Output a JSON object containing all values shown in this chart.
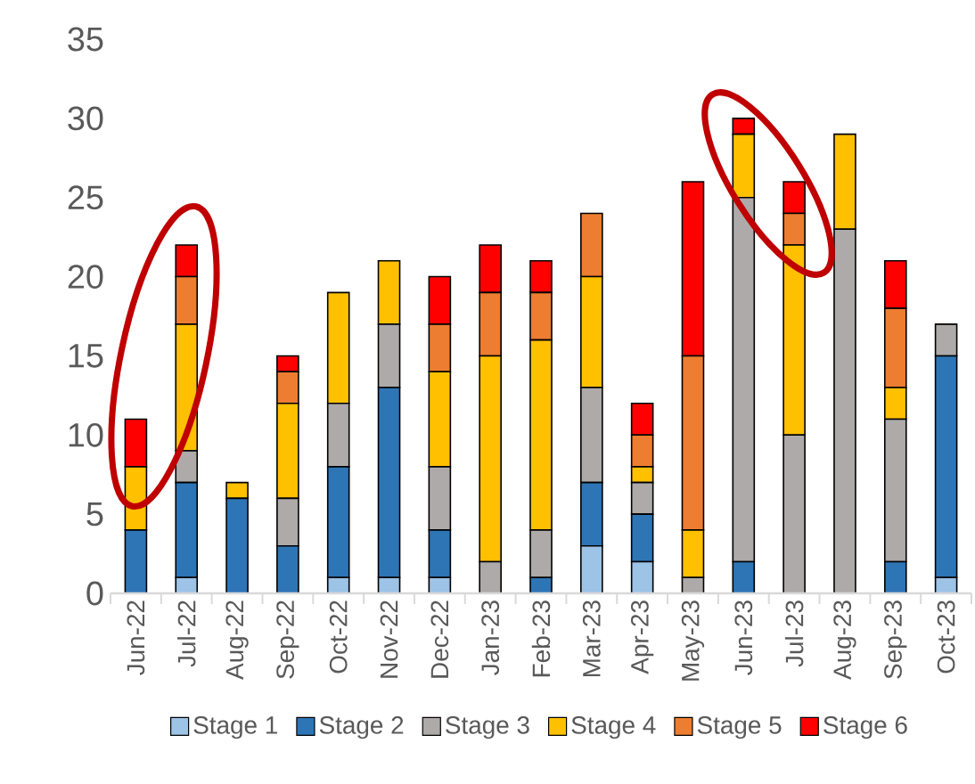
{
  "chart_data": {
    "type": "bar",
    "stacked": true,
    "categories": [
      "Jun-22",
      "Jul-22",
      "Aug-22",
      "Sep-22",
      "Oct-22",
      "Nov-22",
      "Dec-22",
      "Jan-23",
      "Feb-23",
      "Mar-23",
      "Apr-23",
      "May-23",
      "Jun-23",
      "Jul-23",
      "Aug-23",
      "Sep-23",
      "Oct-23"
    ],
    "series": [
      {
        "name": "Stage 1",
        "color": "#9dc3e6",
        "values": [
          0,
          1,
          0,
          0,
          1,
          1,
          1,
          0,
          0,
          3,
          2,
          0,
          0,
          0,
          0,
          0,
          1
        ]
      },
      {
        "name": "Stage 2",
        "color": "#2e75b6",
        "values": [
          4,
          6,
          6,
          3,
          7,
          12,
          3,
          0,
          1,
          4,
          3,
          0,
          2,
          0,
          0,
          2,
          14
        ]
      },
      {
        "name": "Stage 3",
        "color": "#aeaaaa",
        "values": [
          0,
          2,
          0,
          3,
          4,
          4,
          4,
          2,
          3,
          6,
          2,
          1,
          23,
          10,
          23,
          9,
          2
        ]
      },
      {
        "name": "Stage 4",
        "color": "#ffc000",
        "values": [
          4,
          8,
          1,
          6,
          7,
          4,
          6,
          13,
          12,
          7,
          1,
          3,
          4,
          12,
          6,
          2,
          0
        ]
      },
      {
        "name": "Stage 5",
        "color": "#ed7d31",
        "values": [
          0,
          3,
          0,
          2,
          0,
          0,
          3,
          4,
          3,
          4,
          2,
          11,
          0,
          2,
          0,
          5,
          0
        ]
      },
      {
        "name": "Stage 6",
        "color": "#ff0000",
        "values": [
          3,
          2,
          0,
          1,
          0,
          0,
          3,
          3,
          2,
          0,
          2,
          11,
          1,
          2,
          0,
          3,
          0
        ]
      }
    ],
    "ylim": [
      0,
      35
    ],
    "yticks": [
      0,
      5,
      10,
      15,
      20,
      25,
      30,
      35
    ],
    "grid": false,
    "legend": "bottom"
  }
}
